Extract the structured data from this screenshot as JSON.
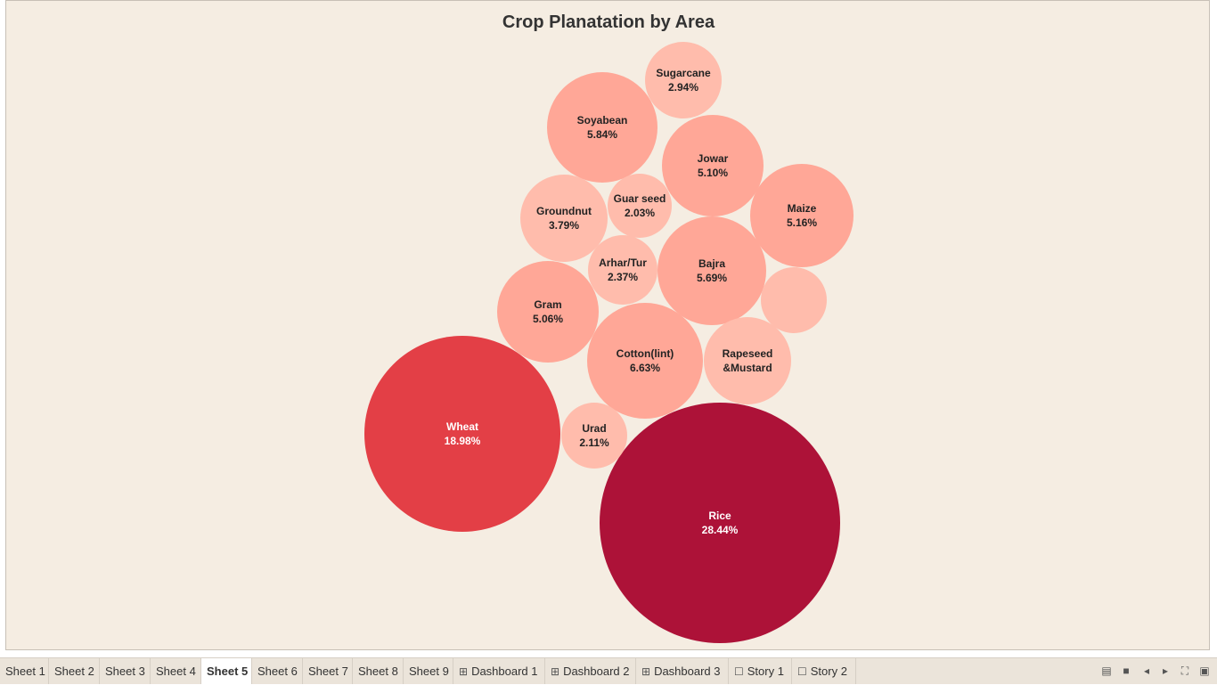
{
  "chart_data": {
    "type": "bubble",
    "title": "Crop Planatation by Area",
    "size_measure": "share of area",
    "colors": {
      "high": "#ad1238",
      "mid_high": "#e33f46",
      "mid": "#ffa797",
      "low": "#ffbcac"
    },
    "bubbles": [
      {
        "name": "Rice",
        "label": "Rice",
        "value_label": "28.44%",
        "value": 28.44,
        "color": "#ad1238",
        "text_color": "#ffffff"
      },
      {
        "name": "Wheat",
        "label": "Wheat",
        "value_label": "18.98%",
        "value": 18.98,
        "color": "#e33f46",
        "text_color": "#ffffff"
      },
      {
        "name": "Cotton(lint)",
        "label": "Cotton(lint)",
        "value_label": "6.63%",
        "value": 6.63,
        "color": "#ffa797",
        "text_color": "#222222"
      },
      {
        "name": "Soyabean",
        "label": "Soyabean",
        "value_label": "5.84%",
        "value": 5.84,
        "color": "#ffa797",
        "text_color": "#222222"
      },
      {
        "name": "Bajra",
        "label": "Bajra",
        "value_label": "5.69%",
        "value": 5.69,
        "color": "#ffa797",
        "text_color": "#222222"
      },
      {
        "name": "Maize",
        "label": "Maize",
        "value_label": "5.16%",
        "value": 5.16,
        "color": "#ffa797",
        "text_color": "#222222"
      },
      {
        "name": "Jowar",
        "label": "Jowar",
        "value_label": "5.10%",
        "value": 5.1,
        "color": "#ffa797",
        "text_color": "#222222"
      },
      {
        "name": "Gram",
        "label": "Gram",
        "value_label": "5.06%",
        "value": 5.06,
        "color": "#ffa797",
        "text_color": "#222222"
      },
      {
        "name": "Rapeseed &Mustard",
        "label": "Rapeseed\n&Mustard",
        "value_label": "",
        "value": 4.0,
        "color": "#ffbcac",
        "text_color": "#222222"
      },
      {
        "name": "Groundnut",
        "label": "Groundnut",
        "value_label": "3.79%",
        "value": 3.79,
        "color": "#ffbcac",
        "text_color": "#222222"
      },
      {
        "name": "Sugarcane",
        "label": "Sugarcane",
        "value_label": "2.94%",
        "value": 2.94,
        "color": "#ffbcac",
        "text_color": "#222222"
      },
      {
        "name": "Arhar/Tur",
        "label": "Arhar/Tur",
        "value_label": "2.37%",
        "value": 2.37,
        "color": "#ffbcac",
        "text_color": "#222222"
      },
      {
        "name": "Urad",
        "label": "Urad",
        "value_label": "2.11%",
        "value": 2.11,
        "color": "#ffbcac",
        "text_color": "#222222"
      },
      {
        "name": "Guar seed",
        "label": "Guar seed",
        "value_label": "2.03%",
        "value": 2.03,
        "color": "#ffbcac",
        "text_color": "#222222"
      },
      {
        "name": "",
        "label": "",
        "value_label": "",
        "value": 2.8,
        "color": "#ffbcac",
        "text_color": "#222222"
      }
    ]
  },
  "tabs": [
    {
      "label": "Sheet 1",
      "icon": "",
      "active": false
    },
    {
      "label": "Sheet 2",
      "icon": "",
      "active": false
    },
    {
      "label": "Sheet 3",
      "icon": "",
      "active": false
    },
    {
      "label": "Sheet 4",
      "icon": "",
      "active": false
    },
    {
      "label": "Sheet 5",
      "icon": "",
      "active": true
    },
    {
      "label": "Sheet 6",
      "icon": "",
      "active": false
    },
    {
      "label": "Sheet 7",
      "icon": "",
      "active": false
    },
    {
      "label": "Sheet 8",
      "icon": "",
      "active": false
    },
    {
      "label": "Sheet 9",
      "icon": "",
      "active": false
    },
    {
      "label": "Dashboard 1",
      "icon": "dashboard-icon",
      "active": false
    },
    {
      "label": "Dashboard 2",
      "icon": "dashboard-icon",
      "active": false
    },
    {
      "label": "Dashboard 3",
      "icon": "dashboard-icon",
      "active": false
    },
    {
      "label": "Story 1",
      "icon": "story-icon",
      "active": false
    },
    {
      "label": "Story 2",
      "icon": "story-icon",
      "active": false
    }
  ],
  "controls": [
    {
      "name": "show-filmstrip-icon"
    },
    {
      "name": "show-tabs-icon"
    },
    {
      "name": "previous-sheet-icon"
    },
    {
      "name": "next-sheet-icon"
    },
    {
      "name": "fullscreen-icon"
    },
    {
      "name": "presentation-mode-icon"
    }
  ]
}
